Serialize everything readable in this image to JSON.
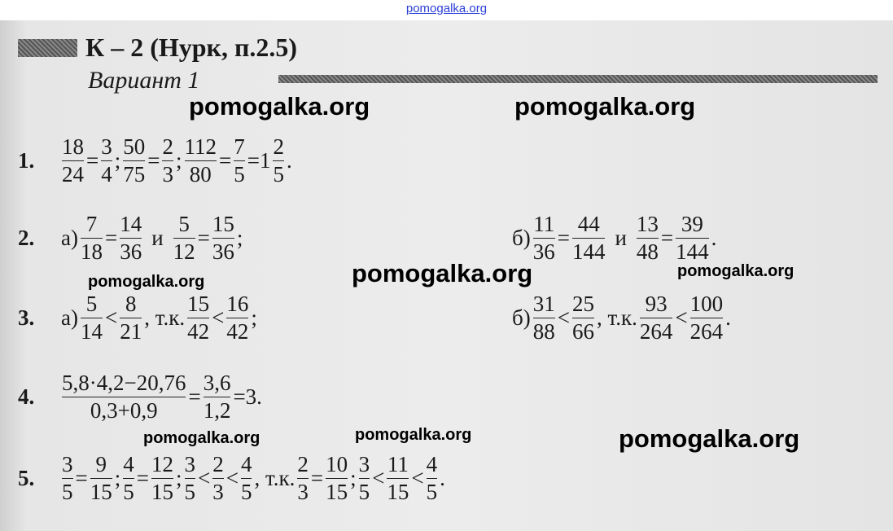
{
  "site_link": "pomogalka.org",
  "title": "К – 2 (Нурк, п.2.5)",
  "variant": "Вариант 1",
  "watermark": "pomogalka.org",
  "problems": [
    {
      "label": "1.",
      "parts": [
        {
          "tokens": [
            {
              "n": "18",
              "d": "24"
            },
            {
              "t": "="
            },
            {
              "n": "3",
              "d": "4"
            },
            {
              "t": ";"
            },
            {
              "n": "50",
              "d": "75"
            },
            {
              "t": "="
            },
            {
              "n": "2",
              "d": "3"
            },
            {
              "t": ";"
            },
            {
              "n": "112",
              "d": "80"
            },
            {
              "t": "="
            },
            {
              "n": "7",
              "d": "5"
            },
            {
              "t": "=1"
            },
            {
              "n": "2",
              "d": "5"
            },
            {
              "t": "."
            }
          ]
        }
      ]
    },
    {
      "label": "2.",
      "parts": [
        {
          "tokens": [
            {
              "t": "а)"
            },
            {
              "n": "7",
              "d": "18"
            },
            {
              "t": "="
            },
            {
              "n": "14",
              "d": "36"
            },
            {
              "t": "и"
            },
            {
              "n": "5",
              "d": "12"
            },
            {
              "t": "="
            },
            {
              "n": "15",
              "d": "36"
            },
            {
              "t": ";"
            }
          ]
        },
        {
          "tokens": [
            {
              "t": "б)"
            },
            {
              "n": "11",
              "d": "36"
            },
            {
              "t": "="
            },
            {
              "n": "44",
              "d": "144"
            },
            {
              "t": "и"
            },
            {
              "n": "13",
              "d": "48"
            },
            {
              "t": "="
            },
            {
              "n": "39",
              "d": "144"
            },
            {
              "t": "."
            }
          ]
        }
      ]
    },
    {
      "label": "3.",
      "parts": [
        {
          "tokens": [
            {
              "t": "а)"
            },
            {
              "n": "5",
              "d": "14"
            },
            {
              "t": "<"
            },
            {
              "n": "8",
              "d": "21"
            },
            {
              "t": ", т.к."
            },
            {
              "n": "15",
              "d": "42"
            },
            {
              "t": "<"
            },
            {
              "n": "16",
              "d": "42"
            },
            {
              "t": ";"
            }
          ]
        },
        {
          "tokens": [
            {
              "t": "б)"
            },
            {
              "n": "31",
              "d": "88"
            },
            {
              "t": "<"
            },
            {
              "n": "25",
              "d": "66"
            },
            {
              "t": ", т.к."
            },
            {
              "n": "93",
              "d": "264"
            },
            {
              "t": "<"
            },
            {
              "n": "100",
              "d": "264"
            },
            {
              "t": "."
            }
          ]
        }
      ]
    },
    {
      "label": "4.",
      "parts": [
        {
          "tokens": [
            {
              "n": "5,8·4,2−20,76",
              "d": "0,3+0,9"
            },
            {
              "t": "="
            },
            {
              "n": "3,6",
              "d": "1,2"
            },
            {
              "t": "=3."
            }
          ]
        }
      ]
    },
    {
      "label": "5.",
      "parts": [
        {
          "tokens": [
            {
              "n": "3",
              "d": "5"
            },
            {
              "t": "="
            },
            {
              "n": "9",
              "d": "15"
            },
            {
              "t": ";"
            },
            {
              "n": "4",
              "d": "5"
            },
            {
              "t": "="
            },
            {
              "n": "12",
              "d": "15"
            },
            {
              "t": ";"
            },
            {
              "n": "3",
              "d": "5"
            },
            {
              "t": "<"
            },
            {
              "n": "2",
              "d": "3"
            },
            {
              "t": "<"
            },
            {
              "n": "4",
              "d": "5"
            },
            {
              "t": ", т.к."
            },
            {
              "n": "2",
              "d": "3"
            },
            {
              "t": "="
            },
            {
              "n": "10",
              "d": "15"
            },
            {
              "t": ";"
            },
            {
              "n": "3",
              "d": "5"
            },
            {
              "t": "<"
            },
            {
              "n": "11",
              "d": "15"
            },
            {
              "t": "<"
            },
            {
              "n": "4",
              "d": "5"
            },
            {
              "t": "."
            }
          ]
        }
      ]
    }
  ]
}
